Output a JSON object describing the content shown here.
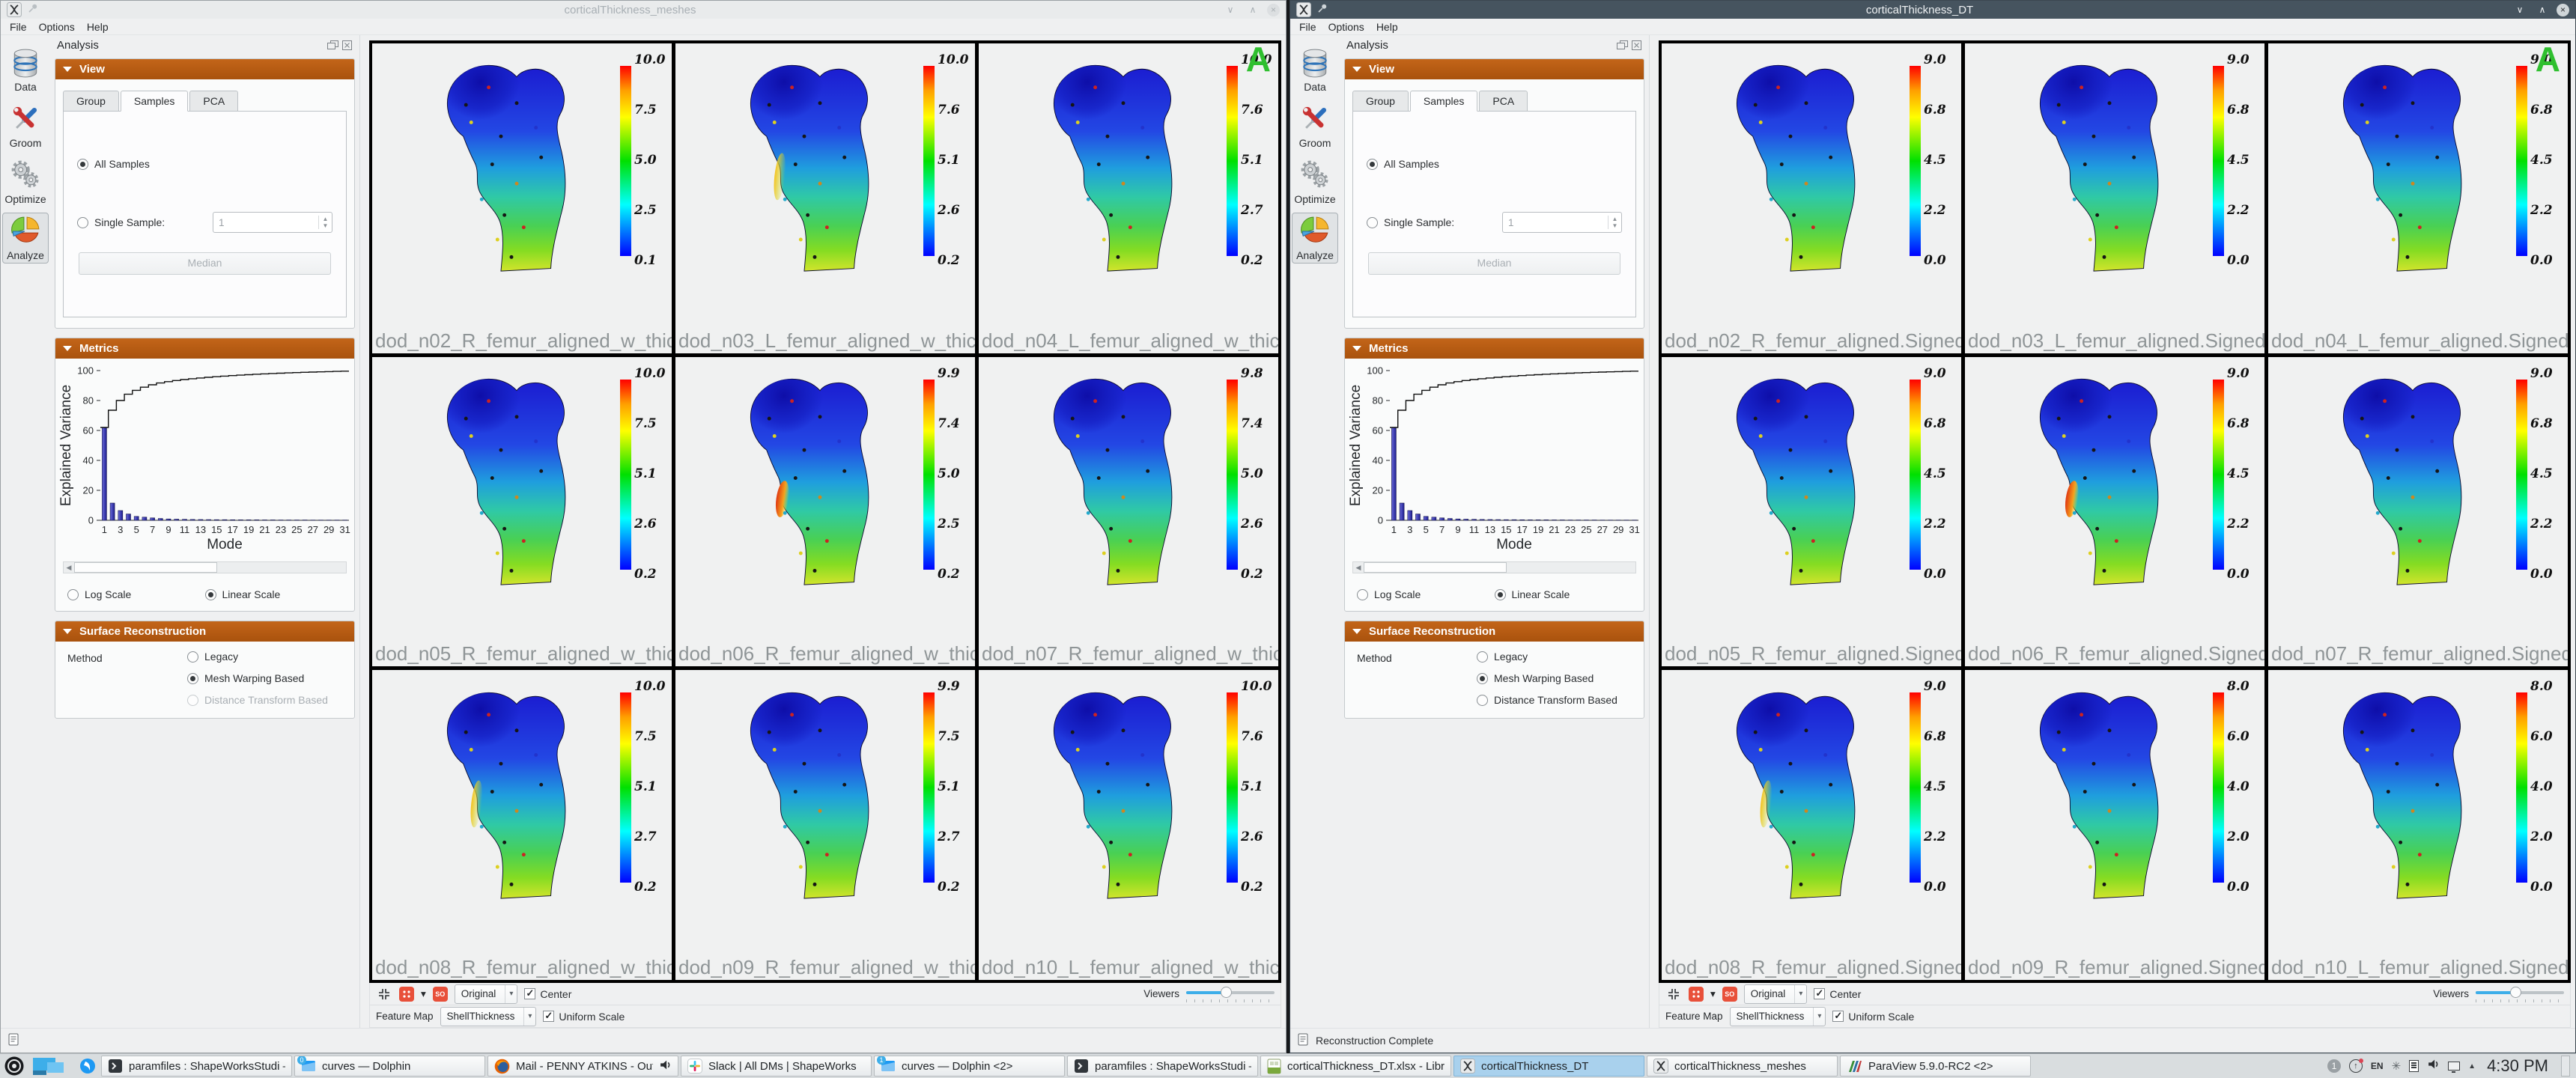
{
  "chart_data": {
    "type": "bar+line",
    "title": "Explained Variance by Mode",
    "xlabel": "Mode",
    "ylabel": "Explained Variance",
    "ylim": [
      0,
      100
    ],
    "yticks": [
      0,
      20,
      40,
      60,
      80,
      100
    ],
    "xticks": [
      1,
      3,
      5,
      7,
      9,
      11,
      13,
      15,
      17,
      19,
      21,
      23,
      25,
      27,
      29,
      31
    ],
    "bar_values": [
      62,
      11.5,
      6.5,
      4.2,
      2.6,
      2.1,
      1.6,
      1.2,
      0.9,
      0.75,
      0.65,
      0.55,
      0.5,
      0.45,
      0.42,
      0.38,
      0.35,
      0.32,
      0.3,
      0.28,
      0.26,
      0.24,
      0.22,
      0.2,
      0.19,
      0.18,
      0.17,
      0.16,
      0.15,
      0.14,
      0.13
    ],
    "line_is_cumulative": true,
    "grid": false,
    "legend_position": "none"
  },
  "windows": [
    {
      "title": "corticalThickness_meshes",
      "active": false,
      "window_buttons": {
        "minimize": "∨",
        "maximize": "∧",
        "close": "×"
      },
      "menu": [
        "File",
        "Options",
        "Help"
      ],
      "sidebar": [
        {
          "label": "Data",
          "icon": "database-icon",
          "selected": false
        },
        {
          "label": "Groom",
          "icon": "tools-icon",
          "selected": false
        },
        {
          "label": "Optimize",
          "icon": "gears-icon",
          "selected": false
        },
        {
          "label": "Analyze",
          "icon": "pie-chart-icon",
          "selected": true
        }
      ],
      "dock": {
        "title": "Analysis",
        "view": {
          "header": "View",
          "tabs": [
            "Group",
            "Samples",
            "PCA"
          ],
          "active_tab": "Samples",
          "all_samples_label": "All Samples",
          "all_samples_selected": true,
          "single_sample_label": "Single Sample:",
          "single_sample_value": "1",
          "median_button": "Median",
          "median_enabled": false
        },
        "metrics": {
          "header": "Metrics",
          "ylabel": "Explained Variance",
          "xlabel": "Mode",
          "log_scale_label": "Log Scale",
          "linear_scale_label": "Linear Scale",
          "selected_scale": "Linear Scale"
        },
        "surface": {
          "header": "Surface Reconstruction",
          "method_label": "Method",
          "options": [
            {
              "label": "Legacy",
              "selected": false,
              "enabled": true
            },
            {
              "label": "Mesh Warping Based",
              "selected": true,
              "enabled": true
            },
            {
              "label": "Distance Transform Based",
              "selected": false,
              "enabled": false
            }
          ]
        }
      },
      "viewer": {
        "corner_annotation": "A",
        "cells": [
          {
            "caption": "dod_n02_R_femur_aligned_w_thic",
            "colorbar_ticks": [
              "10.0",
              "7.5",
              "5.0",
              "2.5",
              "0.1"
            ],
            "hotspot": ""
          },
          {
            "caption": "dod_n03_L_femur_aligned_w_thic",
            "colorbar_ticks": [
              "10.0",
              "7.6",
              "5.1",
              "2.6",
              "0.2"
            ],
            "hotspot": "yellow"
          },
          {
            "caption": "dod_n04_L_femur_aligned_w_thic",
            "colorbar_ticks": [
              "10.0",
              "7.6",
              "5.1",
              "2.7",
              "0.2"
            ],
            "hotspot": ""
          },
          {
            "caption": "dod_n05_R_femur_aligned_w_thic",
            "colorbar_ticks": [
              "10.0",
              "7.5",
              "5.1",
              "2.6",
              "0.2"
            ],
            "hotspot": ""
          },
          {
            "caption": "dod_n06_R_femur_aligned_w_thic",
            "colorbar_ticks": [
              "9.9",
              "7.4",
              "5.0",
              "2.5",
              "0.2"
            ],
            "hotspot": "red"
          },
          {
            "caption": "dod_n07_R_femur_aligned_w_thic",
            "colorbar_ticks": [
              "9.8",
              "7.4",
              "5.0",
              "2.6",
              "0.2"
            ],
            "hotspot": ""
          },
          {
            "caption": "dod_n08_R_femur_aligned_w_thic",
            "colorbar_ticks": [
              "10.0",
              "7.5",
              "5.1",
              "2.7",
              "0.2"
            ],
            "hotspot": "yellow"
          },
          {
            "caption": "dod_n09_R_femur_aligned_w_thic",
            "colorbar_ticks": [
              "9.9",
              "7.5",
              "5.1",
              "2.7",
              "0.2"
            ],
            "hotspot": ""
          },
          {
            "caption": "dod_n10_L_femur_aligned_w_thic",
            "colorbar_ticks": [
              "10.0",
              "7.6",
              "5.1",
              "2.6",
              "0.2"
            ],
            "hotspot": ""
          }
        ],
        "toolbar": {
          "original_dropdown": "Original",
          "center_label": "Center",
          "center_checked": true,
          "viewers_label": "Viewers",
          "feature_map_label": "Feature Map",
          "feature_map_value": "ShellThickness",
          "uniform_scale_label": "Uniform Scale",
          "uniform_scale_checked": true,
          "surface_opacity_button": "SO"
        }
      },
      "status_text": ""
    },
    {
      "title": "corticalThickness_DT",
      "active": true,
      "window_buttons": {
        "minimize": "∨",
        "maximize": "∧",
        "close": "×"
      },
      "menu": [
        "File",
        "Options",
        "Help"
      ],
      "sidebar": [
        {
          "label": "Data",
          "icon": "database-icon",
          "selected": false
        },
        {
          "label": "Groom",
          "icon": "tools-icon",
          "selected": false
        },
        {
          "label": "Optimize",
          "icon": "gears-icon",
          "selected": false
        },
        {
          "label": "Analyze",
          "icon": "pie-chart-icon",
          "selected": true
        }
      ],
      "dock": {
        "title": "Analysis",
        "view": {
          "header": "View",
          "tabs": [
            "Group",
            "Samples",
            "PCA"
          ],
          "active_tab": "Samples",
          "all_samples_label": "All Samples",
          "all_samples_selected": true,
          "single_sample_label": "Single Sample:",
          "single_sample_value": "1",
          "median_button": "Median",
          "median_enabled": false
        },
        "metrics": {
          "header": "Metrics",
          "ylabel": "Explained Variance",
          "xlabel": "Mode",
          "log_scale_label": "Log Scale",
          "linear_scale_label": "Linear Scale",
          "selected_scale": "Linear Scale"
        },
        "surface": {
          "header": "Surface Reconstruction",
          "method_label": "Method",
          "options": [
            {
              "label": "Legacy",
              "selected": false,
              "enabled": true
            },
            {
              "label": "Mesh Warping Based",
              "selected": true,
              "enabled": true
            },
            {
              "label": "Distance Transform Based",
              "selected": false,
              "enabled": true
            }
          ]
        }
      },
      "viewer": {
        "corner_annotation": "A",
        "cells": [
          {
            "caption": "dod_n02_R_femur_aligned.Signed",
            "colorbar_ticks": [
              "9.0",
              "6.8",
              "4.5",
              "2.2",
              "0.0"
            ],
            "hotspot": ""
          },
          {
            "caption": "dod_n03_L_femur_aligned.Signed",
            "colorbar_ticks": [
              "9.0",
              "6.8",
              "4.5",
              "2.2",
              "0.0"
            ],
            "hotspot": ""
          },
          {
            "caption": "dod_n04_L_femur_aligned.Signed",
            "colorbar_ticks": [
              "9.0",
              "6.8",
              "4.5",
              "2.2",
              "0.0"
            ],
            "hotspot": ""
          },
          {
            "caption": "dod_n05_R_femur_aligned.Signed",
            "colorbar_ticks": [
              "9.0",
              "6.8",
              "4.5",
              "2.2",
              "0.0"
            ],
            "hotspot": ""
          },
          {
            "caption": "dod_n06_R_femur_aligned.Signed",
            "colorbar_ticks": [
              "9.0",
              "6.8",
              "4.5",
              "2.2",
              "0.0"
            ],
            "hotspot": "red"
          },
          {
            "caption": "dod_n07_R_femur_aligned.Signed",
            "colorbar_ticks": [
              "9.0",
              "6.8",
              "4.5",
              "2.2",
              "0.0"
            ],
            "hotspot": ""
          },
          {
            "caption": "dod_n08_R_femur_aligned.Signed",
            "colorbar_ticks": [
              "9.0",
              "6.8",
              "4.5",
              "2.2",
              "0.0"
            ],
            "hotspot": "yellow"
          },
          {
            "caption": "dod_n09_R_femur_aligned.Signed",
            "colorbar_ticks": [
              "8.0",
              "6.0",
              "4.0",
              "2.0",
              "0.0"
            ],
            "hotspot": ""
          },
          {
            "caption": "dod_n10_L_femur_aligned.Signed",
            "colorbar_ticks": [
              "8.0",
              "6.0",
              "4.0",
              "2.0",
              "0.0"
            ],
            "hotspot": ""
          }
        ],
        "toolbar": {
          "original_dropdown": "Original",
          "center_label": "Center",
          "center_checked": true,
          "viewers_label": "Viewers",
          "feature_map_label": "Feature Map",
          "feature_map_value": "ShellThickness",
          "uniform_scale_label": "Uniform Scale",
          "uniform_scale_checked": true,
          "surface_opacity_button": "SO"
        }
      },
      "status_text": "Reconstruction Complete"
    }
  ],
  "taskbar": {
    "items": [
      {
        "type": "launcher",
        "icon": "app-launcher-icon",
        "label": ""
      },
      {
        "type": "pager",
        "icon": "virtual-desktop-pager-icon",
        "label": ""
      },
      {
        "type": "mini",
        "icon": "blue-app-icon",
        "label": ""
      },
      {
        "type": "task",
        "icon": "terminal-icon",
        "label": "paramfiles : ShapeWorksStudi — K...",
        "active": false
      },
      {
        "type": "task",
        "icon": "dolphin-icon",
        "label": "curves — Dolphin",
        "badge": "0",
        "active": false
      },
      {
        "type": "task",
        "icon": "firefox-icon",
        "label": "Mail - PENNY ATKINS - Outloo...",
        "audio": true,
        "active": false
      },
      {
        "type": "task",
        "icon": "slack-icon",
        "label": "Slack | All DMs | ShapeWorks",
        "active": false
      },
      {
        "type": "task",
        "icon": "dolphin-icon",
        "label": "curves — Dolphin <2>",
        "badge": "1",
        "active": false
      },
      {
        "type": "task",
        "icon": "terminal-icon",
        "label": "paramfiles : ShapeWorksStudi — K...",
        "active": false
      },
      {
        "type": "task",
        "icon": "libreoffice-calc-icon",
        "label": "corticalThickness_DT.xlsx - LibreOf...",
        "active": false
      },
      {
        "type": "task",
        "icon": "shapeworks-icon",
        "label": "corticalThickness_DT",
        "active": true
      },
      {
        "type": "task",
        "icon": "shapeworks-icon",
        "label": "corticalThickness_meshes",
        "active": false
      },
      {
        "type": "task",
        "icon": "paraview-icon",
        "label": "ParaView 5.9.0-RC2 <2>",
        "active": false
      }
    ],
    "tray": {
      "notification_badge": "1",
      "keyboard_layout": "EN",
      "clock": "4:30 PM"
    }
  }
}
